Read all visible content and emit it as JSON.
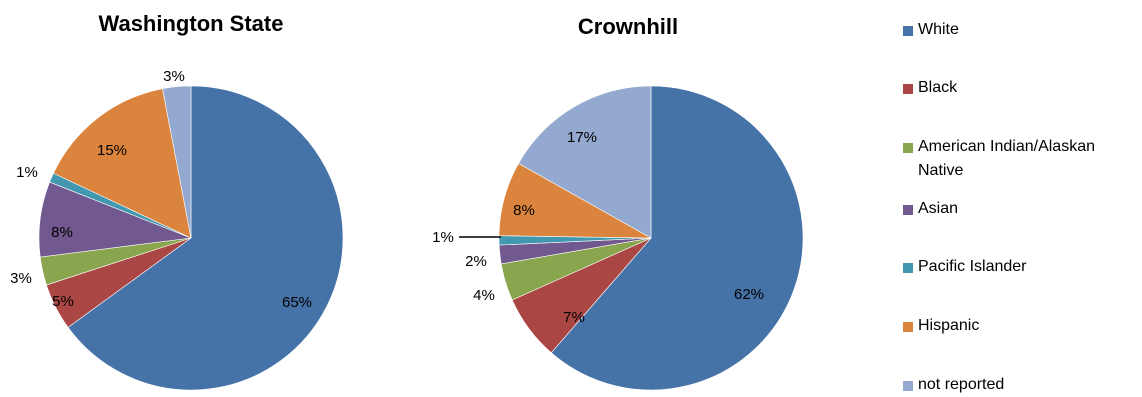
{
  "chart_data": [
    {
      "type": "pie",
      "title": "Washington State",
      "categories": [
        "White",
        "Black",
        "American Indian/Alaskan Native",
        "Asian",
        "Pacific Islander",
        "Hispanic",
        "not reported"
      ],
      "values": [
        65,
        5,
        3,
        8,
        1,
        15,
        3
      ],
      "labels": [
        "65%",
        "5%",
        "3%",
        "8%",
        "1%",
        "15%",
        "3%"
      ]
    },
    {
      "type": "pie",
      "title": "Crownhill",
      "categories": [
        "White",
        "Black",
        "American Indian/Alaskan Native",
        "Asian",
        "Pacific Islander",
        "Hispanic",
        "not reported"
      ],
      "values": [
        62,
        7,
        4,
        2,
        1,
        8,
        17
      ],
      "labels": [
        "62%",
        "7%",
        "4%",
        "2%",
        "1%",
        "8%",
        "17%"
      ]
    }
  ],
  "legend": [
    {
      "label": "White",
      "color": "#4572A7"
    },
    {
      "label": "Black",
      "color": "#AA4643"
    },
    {
      "label": "American Indian/Alaskan Native",
      "color": "#89A54E"
    },
    {
      "label": "Asian",
      "color": "#71588F"
    },
    {
      "label": "Pacific Islander",
      "color": "#4198AF"
    },
    {
      "label": "Hispanic",
      "color": "#DB843D"
    },
    {
      "label": "not reported",
      "color": "#93A9CF"
    }
  ]
}
